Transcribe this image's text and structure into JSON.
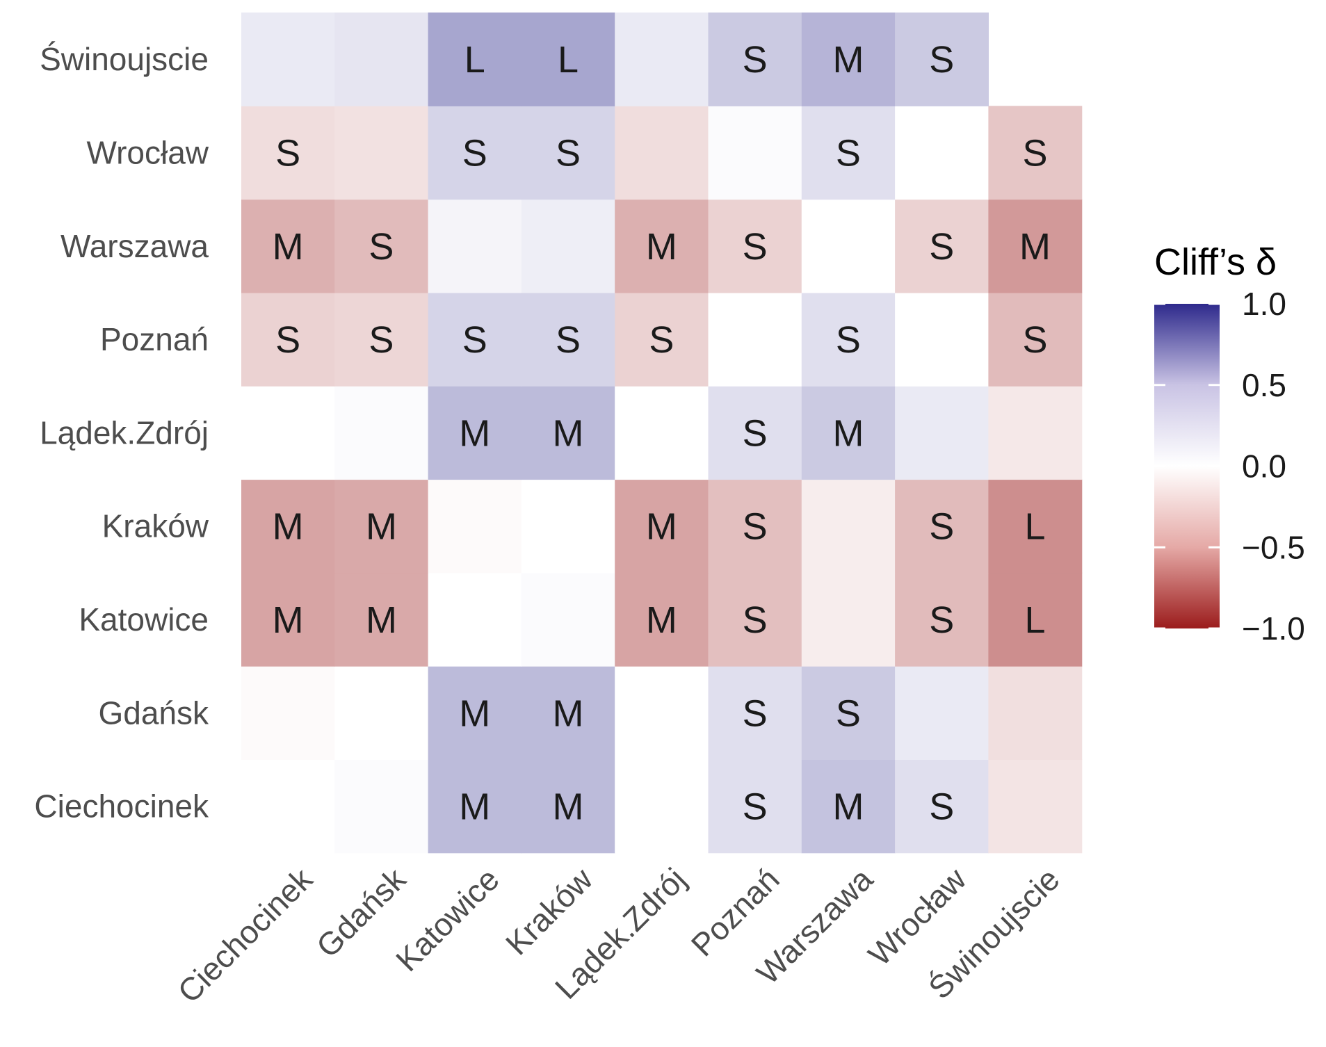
{
  "chart_data": {
    "type": "heatmap",
    "title": "",
    "xlabel": "",
    "ylabel": "",
    "x_categories": [
      "Ciechocinek",
      "Gdańsk",
      "Katowice",
      "Kraków",
      "Lądek.Zdrój",
      "Poznań",
      "Warszawa",
      "Wrocław",
      "Świnoujscie"
    ],
    "y_categories": [
      "Ciechocinek",
      "Gdańsk",
      "Katowice",
      "Kraków",
      "Lądek.Zdrój",
      "Poznań",
      "Warszawa",
      "Wrocław",
      "Świnoujscie"
    ],
    "value_range": [
      -1.0,
      1.0
    ],
    "colors": {
      "low": "#9b1c1c",
      "mid": "#ffffff",
      "high": "#2e2a8c"
    },
    "values": [
      [
        null,
        0.02,
        0.32,
        0.32,
        0.0,
        0.15,
        0.28,
        0.15,
        -0.12
      ],
      [
        -0.02,
        0.0,
        0.32,
        0.32,
        0.0,
        0.15,
        0.25,
        0.1,
        -0.14
      ],
      [
        -0.4,
        -0.38,
        0.0,
        0.02,
        -0.4,
        -0.28,
        -0.08,
        -0.3,
        -0.5
      ],
      [
        -0.4,
        -0.38,
        -0.02,
        0.0,
        -0.4,
        -0.28,
        -0.08,
        -0.3,
        -0.5
      ],
      [
        0.0,
        0.02,
        0.32,
        0.32,
        0.0,
        0.15,
        0.25,
        0.1,
        -0.1
      ],
      [
        -0.2,
        -0.18,
        0.2,
        0.2,
        -0.2,
        0.0,
        0.15,
        0.0,
        -0.3
      ],
      [
        -0.35,
        -0.3,
        0.05,
        0.08,
        -0.35,
        -0.2,
        0.0,
        -0.2,
        -0.45
      ],
      [
        -0.15,
        -0.13,
        0.2,
        0.2,
        -0.15,
        0.02,
        0.15,
        0.0,
        -0.25
      ],
      [
        0.1,
        0.12,
        0.42,
        0.42,
        0.1,
        0.25,
        0.35,
        0.25,
        null
      ]
    ],
    "labels": [
      [
        "",
        "",
        "M",
        "M",
        "",
        "S",
        "M",
        "S",
        ""
      ],
      [
        "",
        "",
        "M",
        "M",
        "",
        "S",
        "S",
        "",
        ""
      ],
      [
        "M",
        "M",
        "",
        "",
        "M",
        "S",
        "",
        "S",
        "L"
      ],
      [
        "M",
        "M",
        "",
        "",
        "M",
        "S",
        "",
        "S",
        "L"
      ],
      [
        "",
        "",
        "M",
        "M",
        "",
        "S",
        "M",
        "",
        ""
      ],
      [
        "S",
        "S",
        "S",
        "S",
        "S",
        "",
        "S",
        "",
        "S"
      ],
      [
        "M",
        "S",
        "",
        "",
        "M",
        "S",
        "",
        "S",
        "M"
      ],
      [
        "S",
        "",
        "S",
        "S",
        "",
        "",
        "S",
        "",
        "S"
      ],
      [
        "",
        "",
        "L",
        "L",
        "",
        "S",
        "M",
        "S",
        ""
      ]
    ],
    "legend": {
      "title": "Cliff’s δ",
      "ticks": [
        1.0,
        0.5,
        0.0,
        -0.5,
        -1.0
      ],
      "tick_labels": [
        "1.0",
        "0.5",
        "0.0",
        "−0.5",
        "−1.0"
      ],
      "position": "right"
    }
  }
}
